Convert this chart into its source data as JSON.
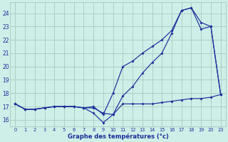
{
  "xlabel": "Graphe des températures (°c)",
  "bg_color": "#ceeee8",
  "grid_color": "#a8c8c0",
  "line_color": "#1a2f9a",
  "ylim": [
    15.5,
    24.8
  ],
  "yticks": [
    16,
    17,
    18,
    19,
    20,
    21,
    22,
    23,
    24
  ],
  "xtick_labels": [
    "0",
    "1",
    "2",
    "3",
    "4",
    "5",
    "6",
    "7",
    "8",
    "9",
    "10",
    "11",
    "12",
    "13",
    "14",
    "15",
    "16",
    "17",
    "18",
    "19",
    "20",
    "23"
  ],
  "line1_y": [
    17.2,
    16.8,
    16.8,
    16.9,
    17.0,
    17.0,
    17.0,
    16.9,
    16.9,
    16.5,
    16.4,
    17.2,
    17.2,
    17.2,
    17.2,
    17.3,
    17.4,
    17.5,
    17.6,
    17.6,
    17.7,
    17.9
  ],
  "line2_y": [
    17.2,
    16.8,
    16.8,
    16.9,
    17.0,
    17.0,
    17.0,
    16.9,
    17.0,
    16.4,
    18.0,
    20.0,
    20.4,
    21.0,
    21.5,
    22.0,
    22.7,
    24.2,
    24.4,
    23.3,
    23.0,
    17.9
  ],
  "line3_y": [
    17.2,
    16.8,
    16.8,
    16.9,
    17.0,
    17.0,
    17.0,
    16.9,
    16.5,
    15.8,
    16.4,
    17.8,
    18.5,
    19.5,
    20.3,
    21.0,
    22.5,
    24.2,
    24.4,
    22.8,
    23.0,
    17.9
  ]
}
